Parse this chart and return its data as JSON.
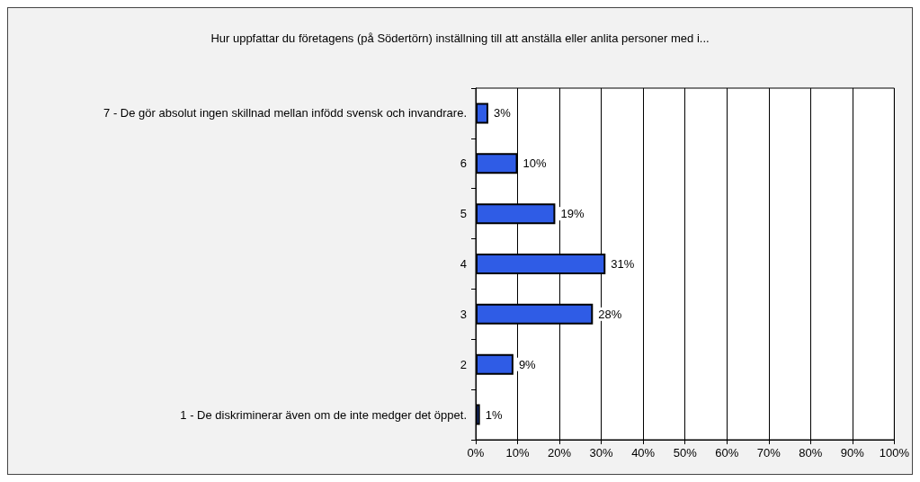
{
  "chart_data": {
    "type": "bar",
    "orientation": "horizontal",
    "title": "Hur uppfattar du företagens (på Södertörn) inställning till att anställa eller anlita personer med i...",
    "categories": [
      "7 - De gör absolut ingen skillnad mellan infödd svensk och invandrare.",
      "6",
      "5",
      "4",
      "3",
      "2",
      "1 - De diskriminerar även om de inte medger det öppet."
    ],
    "values": [
      3,
      10,
      19,
      31,
      28,
      9,
      1
    ],
    "value_labels": [
      "3%",
      "10%",
      "19%",
      "31%",
      "28%",
      "9%",
      "1%"
    ],
    "color": "#2f5ce6",
    "xlim": [
      0,
      100
    ],
    "xticks": [
      {
        "value": 0,
        "label": "0%"
      },
      {
        "value": 10,
        "label": "10%"
      },
      {
        "value": 20,
        "label": "20%"
      },
      {
        "value": 30,
        "label": "30%"
      },
      {
        "value": 40,
        "label": "40%"
      },
      {
        "value": 50,
        "label": "50%"
      },
      {
        "value": 60,
        "label": "60%"
      },
      {
        "value": 70,
        "label": "70%"
      },
      {
        "value": 80,
        "label": "80%"
      },
      {
        "value": 90,
        "label": "90%"
      },
      {
        "value": 100,
        "label": "100%"
      }
    ],
    "grid": "x"
  }
}
